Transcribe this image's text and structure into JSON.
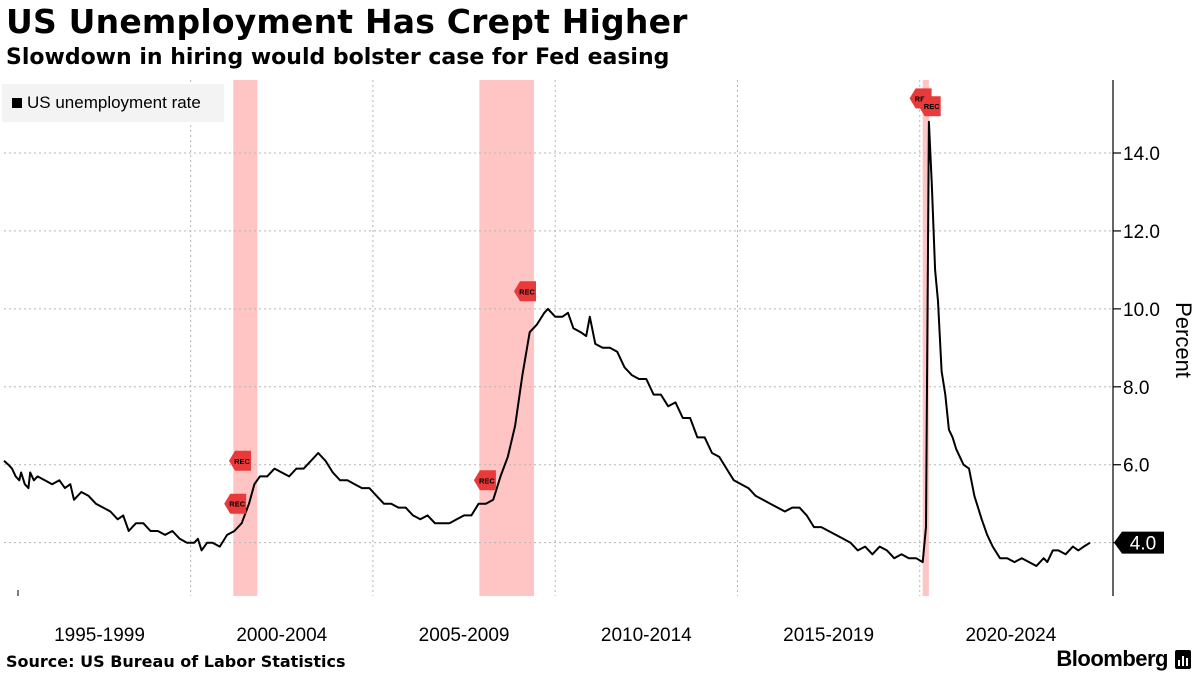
{
  "header": {
    "title": "US Unemployment Has Crept Higher",
    "subtitle": "Slowdown in hiring would bolster case for Fed easing"
  },
  "footer": {
    "source": "Source: US Bureau of Labor Statistics",
    "brand": "Bloomberg"
  },
  "colors": {
    "line": "#000000",
    "recession_band": "#ffc5c5",
    "marker": "#e83a3a",
    "highlight": "#f5a623",
    "grid": "#b5b5b5"
  },
  "chart_data": {
    "type": "line",
    "title": "US Unemployment Has Crept Higher",
    "subtitle": "Slowdown in hiring would bolster case for Fed easing",
    "ylabel": "Percent",
    "xlabel": "",
    "xlim": [
      1994.88,
      2024.67
    ],
    "ylim": [
      2.4,
      15.9
    ],
    "y_ticks": [
      4.0,
      6.0,
      8.0,
      10.0,
      12.0,
      14.0
    ],
    "y_tick_labels": [
      "",
      "6.0",
      "8.0",
      "10.0",
      "12.0",
      "14.0"
    ],
    "x_tick_labels": [
      "1995-1999",
      "2000-2004",
      "2005-2009",
      "2010-2014",
      "2015-2019",
      "2020-2024"
    ],
    "x_tick_centers": [
      1997.5,
      2002.5,
      2007.5,
      2012.5,
      2017.5,
      2022.5
    ],
    "x_separators": [
      2000,
      2005,
      2010,
      2015,
      2020
    ],
    "grid": true,
    "legend": {
      "position": "top-left",
      "entries": [
        "US unemployment rate"
      ]
    },
    "last_value_label": "4.0",
    "last_value": 4.0,
    "recessions": [
      {
        "start": 2001.17,
        "end": 2001.83
      },
      {
        "start": 2007.92,
        "end": 2009.42
      },
      {
        "start": 2020.08,
        "end": 2020.25
      }
    ],
    "rec_markers": [
      {
        "label": "REC",
        "x": 2001.38,
        "y": 6.1
      },
      {
        "label": "REC",
        "x": 2001.25,
        "y": 5.0
      },
      {
        "label": "REC",
        "x": 2008.1,
        "y": 5.6
      },
      {
        "label": "REC",
        "x": 2009.2,
        "y": 10.45
      },
      {
        "label": "REC",
        "x": 2020.05,
        "y": 15.4
      },
      {
        "label": "REC",
        "x": 2020.3,
        "y": 15.2
      }
    ],
    "series": [
      {
        "name": "US unemployment rate",
        "points": [
          [
            1994.88,
            6.1
          ],
          [
            1995.0,
            6.0
          ],
          [
            1995.1,
            5.9
          ],
          [
            1995.2,
            5.7
          ],
          [
            1995.3,
            5.6
          ],
          [
            1995.35,
            5.8
          ],
          [
            1995.45,
            5.5
          ],
          [
            1995.55,
            5.4
          ],
          [
            1995.6,
            5.8
          ],
          [
            1995.7,
            5.6
          ],
          [
            1995.8,
            5.7
          ],
          [
            1996.0,
            5.6
          ],
          [
            1996.2,
            5.5
          ],
          [
            1996.4,
            5.6
          ],
          [
            1996.55,
            5.4
          ],
          [
            1996.7,
            5.5
          ],
          [
            1996.8,
            5.1
          ],
          [
            1997.0,
            5.3
          ],
          [
            1997.2,
            5.2
          ],
          [
            1997.4,
            5.0
          ],
          [
            1997.6,
            4.9
          ],
          [
            1997.8,
            4.8
          ],
          [
            1998.0,
            4.6
          ],
          [
            1998.15,
            4.7
          ],
          [
            1998.3,
            4.3
          ],
          [
            1998.5,
            4.5
          ],
          [
            1998.7,
            4.5
          ],
          [
            1998.9,
            4.3
          ],
          [
            1999.1,
            4.3
          ],
          [
            1999.3,
            4.2
          ],
          [
            1999.5,
            4.3
          ],
          [
            1999.7,
            4.1
          ],
          [
            1999.9,
            4.0
          ],
          [
            2000.1,
            4.0
          ],
          [
            2000.2,
            4.1
          ],
          [
            2000.3,
            3.8
          ],
          [
            2000.45,
            4.0
          ],
          [
            2000.6,
            4.0
          ],
          [
            2000.8,
            3.9
          ],
          [
            2001.0,
            4.2
          ],
          [
            2001.2,
            4.3
          ],
          [
            2001.4,
            4.5
          ],
          [
            2001.6,
            5.0
          ],
          [
            2001.75,
            5.5
          ],
          [
            2001.9,
            5.7
          ],
          [
            2002.1,
            5.7
          ],
          [
            2002.3,
            5.9
          ],
          [
            2002.5,
            5.8
          ],
          [
            2002.7,
            5.7
          ],
          [
            2002.9,
            5.9
          ],
          [
            2003.1,
            5.9
          ],
          [
            2003.3,
            6.1
          ],
          [
            2003.5,
            6.3
          ],
          [
            2003.7,
            6.1
          ],
          [
            2003.9,
            5.8
          ],
          [
            2004.1,
            5.6
          ],
          [
            2004.3,
            5.6
          ],
          [
            2004.5,
            5.5
          ],
          [
            2004.7,
            5.4
          ],
          [
            2004.9,
            5.4
          ],
          [
            2005.1,
            5.2
          ],
          [
            2005.3,
            5.0
          ],
          [
            2005.5,
            5.0
          ],
          [
            2005.7,
            4.9
          ],
          [
            2005.9,
            4.9
          ],
          [
            2006.1,
            4.7
          ],
          [
            2006.3,
            4.6
          ],
          [
            2006.5,
            4.7
          ],
          [
            2006.7,
            4.5
          ],
          [
            2006.9,
            4.5
          ],
          [
            2007.1,
            4.5
          ],
          [
            2007.3,
            4.6
          ],
          [
            2007.5,
            4.7
          ],
          [
            2007.7,
            4.7
          ],
          [
            2007.9,
            5.0
          ],
          [
            2008.1,
            5.0
          ],
          [
            2008.3,
            5.1
          ],
          [
            2008.5,
            5.7
          ],
          [
            2008.7,
            6.2
          ],
          [
            2008.9,
            7.0
          ],
          [
            2009.1,
            8.3
          ],
          [
            2009.3,
            9.4
          ],
          [
            2009.5,
            9.6
          ],
          [
            2009.7,
            9.9
          ],
          [
            2009.8,
            10.0
          ],
          [
            2010.0,
            9.8
          ],
          [
            2010.2,
            9.8
          ],
          [
            2010.35,
            9.9
          ],
          [
            2010.5,
            9.5
          ],
          [
            2010.7,
            9.4
          ],
          [
            2010.85,
            9.3
          ],
          [
            2010.95,
            9.8
          ],
          [
            2011.1,
            9.1
          ],
          [
            2011.3,
            9.0
          ],
          [
            2011.5,
            9.0
          ],
          [
            2011.7,
            8.9
          ],
          [
            2011.9,
            8.5
          ],
          [
            2012.1,
            8.3
          ],
          [
            2012.3,
            8.2
          ],
          [
            2012.5,
            8.2
          ],
          [
            2012.7,
            7.8
          ],
          [
            2012.9,
            7.8
          ],
          [
            2013.1,
            7.5
          ],
          [
            2013.3,
            7.6
          ],
          [
            2013.5,
            7.2
          ],
          [
            2013.7,
            7.2
          ],
          [
            2013.9,
            6.7
          ],
          [
            2014.1,
            6.7
          ],
          [
            2014.3,
            6.3
          ],
          [
            2014.5,
            6.2
          ],
          [
            2014.7,
            5.9
          ],
          [
            2014.9,
            5.6
          ],
          [
            2015.1,
            5.5
          ],
          [
            2015.3,
            5.4
          ],
          [
            2015.5,
            5.2
          ],
          [
            2015.7,
            5.1
          ],
          [
            2015.9,
            5.0
          ],
          [
            2016.1,
            4.9
          ],
          [
            2016.3,
            4.8
          ],
          [
            2016.5,
            4.9
          ],
          [
            2016.7,
            4.9
          ],
          [
            2016.9,
            4.7
          ],
          [
            2017.1,
            4.4
          ],
          [
            2017.3,
            4.4
          ],
          [
            2017.5,
            4.3
          ],
          [
            2017.7,
            4.2
          ],
          [
            2017.9,
            4.1
          ],
          [
            2018.1,
            4.0
          ],
          [
            2018.3,
            3.8
          ],
          [
            2018.5,
            3.9
          ],
          [
            2018.7,
            3.7
          ],
          [
            2018.9,
            3.9
          ],
          [
            2019.1,
            3.8
          ],
          [
            2019.3,
            3.6
          ],
          [
            2019.5,
            3.7
          ],
          [
            2019.7,
            3.6
          ],
          [
            2019.9,
            3.6
          ],
          [
            2020.08,
            3.5
          ],
          [
            2020.17,
            4.4
          ],
          [
            2020.25,
            14.8
          ],
          [
            2020.33,
            13.2
          ],
          [
            2020.42,
            11.0
          ],
          [
            2020.5,
            10.2
          ],
          [
            2020.6,
            8.4
          ],
          [
            2020.7,
            7.8
          ],
          [
            2020.8,
            6.9
          ],
          [
            2020.9,
            6.7
          ],
          [
            2021.0,
            6.4
          ],
          [
            2021.2,
            6.0
          ],
          [
            2021.35,
            5.9
          ],
          [
            2021.5,
            5.2
          ],
          [
            2021.7,
            4.6
          ],
          [
            2021.85,
            4.2
          ],
          [
            2022.0,
            3.9
          ],
          [
            2022.2,
            3.6
          ],
          [
            2022.4,
            3.6
          ],
          [
            2022.6,
            3.5
          ],
          [
            2022.8,
            3.6
          ],
          [
            2023.0,
            3.5
          ],
          [
            2023.2,
            3.4
          ],
          [
            2023.4,
            3.6
          ],
          [
            2023.5,
            3.5
          ],
          [
            2023.65,
            3.8
          ],
          [
            2023.8,
            3.8
          ],
          [
            2024.0,
            3.7
          ],
          [
            2024.2,
            3.9
          ],
          [
            2024.35,
            3.8
          ],
          [
            2024.5,
            3.9
          ],
          [
            2024.67,
            4.0
          ]
        ]
      }
    ]
  }
}
